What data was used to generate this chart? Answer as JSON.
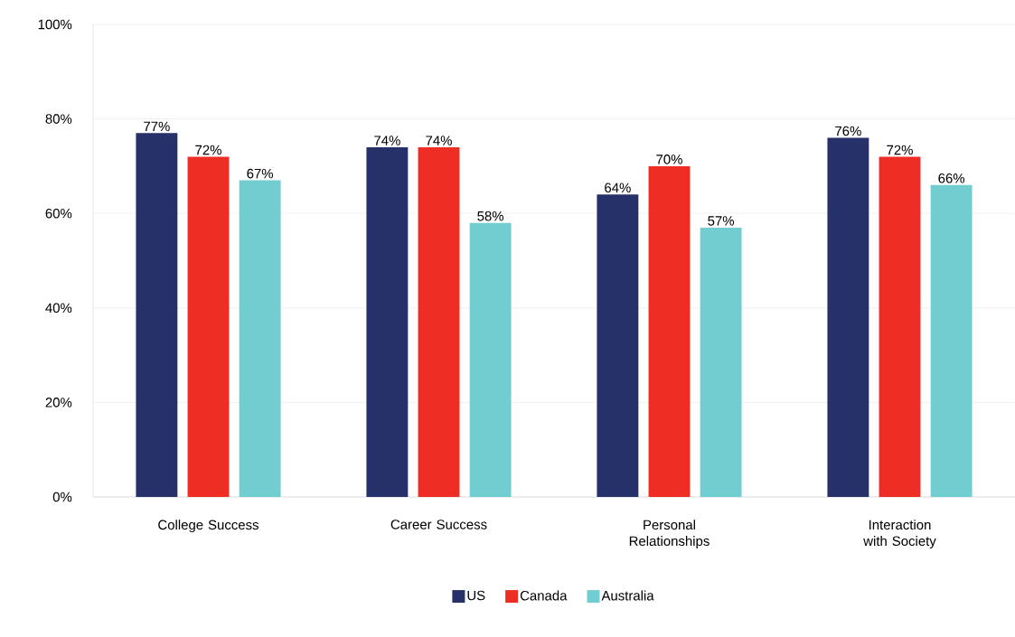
{
  "chart_data": {
    "type": "bar",
    "categories": [
      "College Success",
      "Career Success",
      "Personal Relationships",
      "Interaction with Society"
    ],
    "series": [
      {
        "name": "US",
        "color": "#253168",
        "values": [
          77,
          74,
          64,
          76
        ],
        "value_labels": [
          "77%",
          "74%",
          "64%",
          "76%"
        ]
      },
      {
        "name": "Canada",
        "color": "#ee2e24",
        "values": [
          72,
          74,
          70,
          72
        ],
        "value_labels": [
          "72%",
          "74%",
          "70%",
          "72%"
        ]
      },
      {
        "name": "Australia",
        "color": "#72cdd1",
        "values": [
          67,
          58,
          57,
          66
        ],
        "value_labels": [
          "67%",
          "58%",
          "57%",
          "66%"
        ]
      }
    ],
    "ylim": [
      0,
      100
    ],
    "yticks": [
      {
        "value": 0,
        "label": "0%"
      },
      {
        "value": 20,
        "label": "20%"
      },
      {
        "value": 40,
        "label": "40%"
      },
      {
        "value": 60,
        "label": "60%"
      },
      {
        "value": 80,
        "label": "80%"
      },
      {
        "value": 100,
        "label": "100%"
      }
    ],
    "grid": "y",
    "legend": "bottom"
  }
}
